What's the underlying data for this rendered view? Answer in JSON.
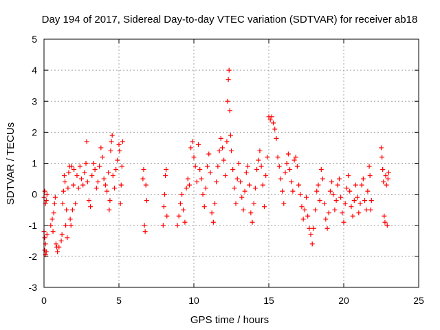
{
  "chart_data": {
    "type": "scatter",
    "title": "Day 194 of 2017, Sidereal Day-to-day VTEC variation (SDTVAR) for receiver ab18",
    "xlabel": "GPS time / hours",
    "ylabel": "SDTVAR / TECUs",
    "xlim": [
      0,
      25
    ],
    "ylim": [
      -3,
      5
    ],
    "xticks": [
      0,
      5,
      10,
      15,
      20,
      25
    ],
    "yticks": [
      -3,
      -2,
      -1,
      0,
      1,
      2,
      3,
      4,
      5
    ],
    "xtick_labels": [
      "0",
      "5",
      "10",
      "15",
      "20",
      "25"
    ],
    "ytick_labels": [
      "-3",
      "-2",
      "-1",
      "0",
      "1",
      "2",
      "3",
      "4",
      "5"
    ],
    "grid": true,
    "marker": "+",
    "color": "#ff0000",
    "series": [
      {
        "name": "SDTVAR",
        "points": [
          [
            0.0,
            -0.1
          ],
          [
            0.05,
            0.1
          ],
          [
            0.1,
            -0.3
          ],
          [
            0.0,
            -1.2
          ],
          [
            0.05,
            -1.4
          ],
          [
            0.1,
            -1.6
          ],
          [
            0.05,
            -1.8
          ],
          [
            0.1,
            -1.95
          ],
          [
            0.15,
            -1.85
          ],
          [
            0.2,
            -1.3
          ],
          [
            0.15,
            -0.2
          ],
          [
            0.2,
            0.0
          ],
          [
            0.45,
            -1.0
          ],
          [
            0.55,
            -0.8
          ],
          [
            0.6,
            -1.2
          ],
          [
            0.65,
            -0.6
          ],
          [
            0.7,
            -0.3
          ],
          [
            0.75,
            -0.1
          ],
          [
            0.8,
            -1.6
          ],
          [
            0.85,
            -1.7
          ],
          [
            0.9,
            -1.85
          ],
          [
            1.0,
            -1.7
          ],
          [
            1.15,
            -1.5
          ],
          [
            1.2,
            -1.3
          ],
          [
            1.25,
            -0.3
          ],
          [
            1.3,
            0.1
          ],
          [
            1.35,
            0.6
          ],
          [
            1.4,
            0.4
          ],
          [
            1.45,
            -1.0
          ],
          [
            1.5,
            -0.5
          ],
          [
            1.55,
            -1.4
          ],
          [
            1.6,
            0.2
          ],
          [
            1.65,
            0.7
          ],
          [
            1.7,
            0.9
          ],
          [
            1.75,
            -0.8
          ],
          [
            1.8,
            -1.0
          ],
          [
            1.85,
            0.9
          ],
          [
            1.9,
            -0.5
          ],
          [
            1.95,
            0.3
          ],
          [
            2.0,
            0.8
          ],
          [
            2.1,
            -0.3
          ],
          [
            2.2,
            0.6
          ],
          [
            2.3,
            0.2
          ],
          [
            2.4,
            0.9
          ],
          [
            2.5,
            0.5
          ],
          [
            2.6,
            0.3
          ],
          [
            2.7,
            0.7
          ],
          [
            2.8,
            1.0
          ],
          [
            2.85,
            1.7
          ],
          [
            2.9,
            0.4
          ],
          [
            3.0,
            -0.2
          ],
          [
            3.1,
            -0.4
          ],
          [
            3.2,
            0.6
          ],
          [
            3.3,
            1.0
          ],
          [
            3.4,
            0.8
          ],
          [
            3.5,
            0.2
          ],
          [
            3.6,
            0.4
          ],
          [
            3.7,
            0.9
          ],
          [
            3.8,
            1.5
          ],
          [
            3.9,
            1.2
          ],
          [
            4.0,
            0.5
          ],
          [
            4.1,
            0.3
          ],
          [
            4.2,
            0.1
          ],
          [
            4.3,
            0.7
          ],
          [
            4.35,
            -0.5
          ],
          [
            4.4,
            -0.2
          ],
          [
            4.45,
            1.4
          ],
          [
            4.5,
            1.7
          ],
          [
            4.55,
            1.9
          ],
          [
            4.6,
            0.6
          ],
          [
            4.7,
            0.2
          ],
          [
            4.8,
            0.8
          ],
          [
            4.9,
            1.1
          ],
          [
            5.0,
            1.6
          ],
          [
            5.05,
            1.4
          ],
          [
            5.1,
            -0.3
          ],
          [
            5.15,
            0.3
          ],
          [
            5.2,
            0.9
          ],
          [
            5.25,
            1.7
          ],
          [
            6.6,
            0.5
          ],
          [
            6.65,
            0.8
          ],
          [
            6.7,
            -1.0
          ],
          [
            6.75,
            -1.2
          ],
          [
            6.8,
            0.3
          ],
          [
            6.85,
            -0.2
          ],
          [
            7.95,
            -1.0
          ],
          [
            8.0,
            -0.4
          ],
          [
            8.05,
            0.0
          ],
          [
            8.1,
            0.6
          ],
          [
            8.15,
            0.8
          ],
          [
            8.2,
            -0.7
          ],
          [
            8.9,
            -1.0
          ],
          [
            9.0,
            -0.7
          ],
          [
            9.1,
            -0.3
          ],
          [
            9.2,
            0.0
          ],
          [
            9.3,
            -0.5
          ],
          [
            9.4,
            -0.9
          ],
          [
            9.5,
            0.2
          ],
          [
            9.6,
            0.5
          ],
          [
            9.7,
            0.3
          ],
          [
            9.8,
            1.5
          ],
          [
            9.9,
            1.7
          ],
          [
            10.0,
            1.2
          ],
          [
            10.1,
            0.9
          ],
          [
            10.2,
            0.4
          ],
          [
            10.3,
            1.6
          ],
          [
            10.4,
            0.8
          ],
          [
            10.5,
            0.5
          ],
          [
            10.6,
            0.0
          ],
          [
            10.7,
            -0.4
          ],
          [
            10.8,
            0.2
          ],
          [
            10.9,
            0.9
          ],
          [
            11.0,
            1.3
          ],
          [
            11.1,
            0.7
          ],
          [
            11.2,
            -0.6
          ],
          [
            11.3,
            -0.9
          ],
          [
            11.4,
            -0.3
          ],
          [
            11.5,
            0.4
          ],
          [
            11.6,
            0.9
          ],
          [
            11.7,
            1.4
          ],
          [
            11.8,
            1.8
          ],
          [
            11.9,
            1.5
          ],
          [
            12.0,
            1.1
          ],
          [
            12.1,
            0.6
          ],
          [
            12.2,
            1.7
          ],
          [
            12.25,
            3.0
          ],
          [
            12.3,
            3.7
          ],
          [
            12.35,
            4.0
          ],
          [
            12.4,
            2.7
          ],
          [
            12.45,
            1.9
          ],
          [
            12.5,
            1.4
          ],
          [
            12.6,
            0.8
          ],
          [
            12.7,
            0.2
          ],
          [
            12.8,
            -0.3
          ],
          [
            12.9,
            0.5
          ],
          [
            13.0,
            1.0
          ],
          [
            13.1,
            0.4
          ],
          [
            13.2,
            -0.1
          ],
          [
            13.3,
            -0.5
          ],
          [
            13.4,
            0.1
          ],
          [
            13.5,
            0.7
          ],
          [
            13.6,
            0.9
          ],
          [
            13.7,
            0.3
          ],
          [
            13.8,
            -0.6
          ],
          [
            13.9,
            -0.9
          ],
          [
            14.0,
            -0.3
          ],
          [
            14.1,
            0.2
          ],
          [
            14.2,
            0.8
          ],
          [
            14.3,
            1.1
          ],
          [
            14.4,
            1.4
          ],
          [
            14.5,
            0.9
          ],
          [
            14.6,
            0.3
          ],
          [
            14.7,
            -0.4
          ],
          [
            14.8,
            0.6
          ],
          [
            14.9,
            1.2
          ],
          [
            15.0,
            2.5
          ],
          [
            15.1,
            2.4
          ],
          [
            15.2,
            2.5
          ],
          [
            15.3,
            2.3
          ],
          [
            15.4,
            2.1
          ],
          [
            15.5,
            1.8
          ],
          [
            15.6,
            1.2
          ],
          [
            15.7,
            0.9
          ],
          [
            15.8,
            0.5
          ],
          [
            15.9,
            0.1
          ],
          [
            16.0,
            -0.3
          ],
          [
            16.1,
            0.7
          ],
          [
            16.2,
            1.0
          ],
          [
            16.3,
            1.3
          ],
          [
            16.4,
            0.8
          ],
          [
            16.5,
            0.4
          ],
          [
            16.6,
            0.1
          ],
          [
            16.7,
            1.1
          ],
          [
            16.8,
            1.2
          ],
          [
            16.9,
            0.9
          ],
          [
            17.0,
            0.3
          ],
          [
            17.1,
            0.0
          ],
          [
            17.2,
            -0.4
          ],
          [
            17.3,
            -0.8
          ],
          [
            17.4,
            -0.5
          ],
          [
            17.5,
            -0.1
          ],
          [
            17.6,
            -0.7
          ],
          [
            17.7,
            -1.1
          ],
          [
            17.8,
            -1.3
          ],
          [
            17.9,
            -1.6
          ],
          [
            18.0,
            -1.1
          ],
          [
            18.1,
            -0.5
          ],
          [
            18.2,
            0.1
          ],
          [
            18.3,
            0.3
          ],
          [
            18.4,
            -0.2
          ],
          [
            18.5,
            0.8
          ],
          [
            18.6,
            0.5
          ],
          [
            18.7,
            -0.3
          ],
          [
            18.8,
            -0.8
          ],
          [
            18.9,
            -1.1
          ],
          [
            19.0,
            -0.6
          ],
          [
            19.1,
            0.1
          ],
          [
            19.2,
            0.4
          ],
          [
            19.3,
            0.0
          ],
          [
            19.4,
            -0.5
          ],
          [
            19.5,
            -0.2
          ],
          [
            19.6,
            0.3
          ],
          [
            19.7,
            0.5
          ],
          [
            19.8,
            -0.1
          ],
          [
            19.9,
            -0.6
          ],
          [
            20.0,
            -0.9
          ],
          [
            20.1,
            -0.3
          ],
          [
            20.2,
            0.2
          ],
          [
            20.3,
            0.6
          ],
          [
            20.4,
            0.1
          ],
          [
            20.5,
            -0.4
          ],
          [
            20.6,
            -0.7
          ],
          [
            20.7,
            -0.2
          ],
          [
            20.8,
            0.3
          ],
          [
            20.9,
            -0.1
          ],
          [
            21.0,
            -0.6
          ],
          [
            21.1,
            -0.3
          ],
          [
            21.2,
            0.3
          ],
          [
            21.3,
            0.5
          ],
          [
            21.4,
            -0.2
          ],
          [
            21.5,
            -0.5
          ],
          [
            21.6,
            0.1
          ],
          [
            21.7,
            0.9
          ],
          [
            21.75,
            0.6
          ],
          [
            21.8,
            -0.5
          ],
          [
            21.85,
            -0.2
          ],
          [
            22.5,
            1.5
          ],
          [
            22.55,
            1.2
          ],
          [
            22.6,
            0.8
          ],
          [
            22.65,
            0.4
          ],
          [
            22.7,
            -0.7
          ],
          [
            22.75,
            -0.9
          ],
          [
            22.8,
            0.6
          ],
          [
            22.85,
            0.3
          ],
          [
            22.9,
            -1.0
          ],
          [
            22.95,
            0.5
          ],
          [
            23.0,
            0.7
          ]
        ]
      }
    ]
  }
}
